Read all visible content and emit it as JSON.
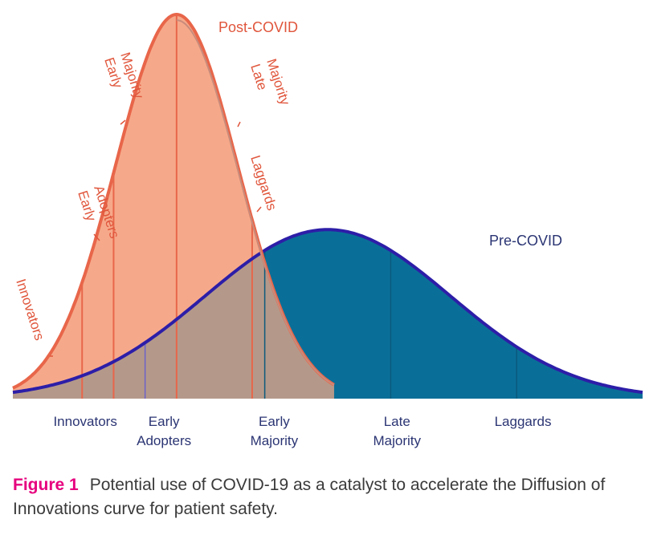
{
  "chart_data": {
    "type": "area",
    "title": "Diffusion of Innovations curve",
    "xlabel": "",
    "ylabel": "",
    "x_range": [
      0,
      100
    ],
    "y_range": [
      0,
      1
    ],
    "series": [
      {
        "name": "Pre-COVID",
        "color": "#0a6f98",
        "line_color": "#2d1ea8",
        "mean": 50,
        "sd": 19.5,
        "peak": 0.44,
        "x_start": 0,
        "segment_boundaries": [
          11,
          21,
          40,
          60,
          80
        ]
      },
      {
        "name": "Post-COVID",
        "color": "#f6a98a",
        "line_color": "#e8664a",
        "mean": 26,
        "sd": 9.7,
        "peak": 1.0,
        "x_start": 0,
        "x_end": 51,
        "segment_boundaries": [
          11,
          16,
          26,
          38
        ]
      }
    ],
    "overlap_color": "#b4998a",
    "categories": [
      "Innovators",
      "Early Adopters",
      "Early Majority",
      "Late Majority",
      "Laggards"
    ],
    "category_labels_lines": [
      [
        "Innovators"
      ],
      [
        "Early",
        "Adopters"
      ],
      [
        "Early",
        "Majority"
      ],
      [
        "Late",
        "Majority"
      ],
      [
        "Laggards"
      ]
    ],
    "category_positions": [
      11.5,
      24,
      41.5,
      61,
      81
    ],
    "curve_labels": [
      {
        "series": "Post-COVID",
        "text": "Post-COVID"
      },
      {
        "series": "Pre-COVID",
        "text": "Pre-COVID"
      }
    ],
    "post_covid_annotations": [
      {
        "lines": [
          "Innovators"
        ],
        "rotate": 72
      },
      {
        "lines": [
          "Early",
          "Adopters"
        ],
        "rotate": 72
      },
      {
        "lines": [
          "Early",
          "Majority"
        ],
        "rotate": 72
      },
      {
        "lines": [
          "Late",
          "Majority"
        ],
        "rotate": 72
      },
      {
        "lines": [
          "Laggards"
        ],
        "rotate": 72
      }
    ]
  },
  "caption": {
    "label": "Figure 1",
    "text": "Potential use of COVID-19 as a catalyst to accelerate the Diffusion of Innovations curve for patient safety."
  }
}
